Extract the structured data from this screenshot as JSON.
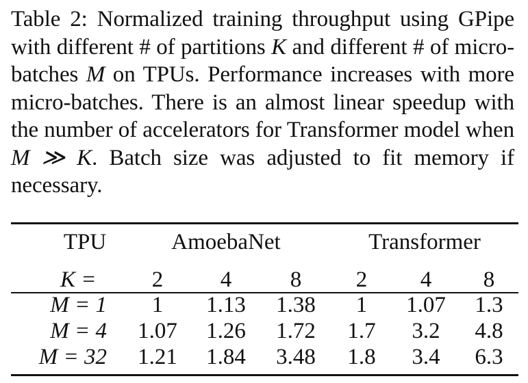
{
  "caption": {
    "label": "Table 2:",
    "text_1": " Normalized training throughput using GPipe with different # of partitions ",
    "K": "K",
    "text_2": " and different # of micro-batches ",
    "M": "M",
    "text_3": " on TPUs. Performance increases with more micro-batches. There is an almost linear speedup with the number of accelerators for Transformer model when ",
    "math_cond": "M ≫ K",
    "text_4": ". Batch size was adjusted to fit memory if necessary."
  },
  "table": {
    "corner_header": "TPU",
    "group_headers": [
      "AmoebaNet",
      "Transformer"
    ],
    "k_row_label": "K =",
    "k_values": [
      "2",
      "4",
      "8",
      "2",
      "4",
      "8"
    ],
    "rows": [
      {
        "label": "M = 1",
        "values": [
          "1",
          "1.13",
          "1.38",
          "1",
          "1.07",
          "1.3"
        ]
      },
      {
        "label": "M = 4",
        "values": [
          "1.07",
          "1.26",
          "1.72",
          "1.7",
          "3.2",
          "4.8"
        ]
      },
      {
        "label": "M = 32",
        "values": [
          "1.21",
          "1.84",
          "3.48",
          "1.8",
          "3.4",
          "6.3"
        ]
      }
    ]
  }
}
